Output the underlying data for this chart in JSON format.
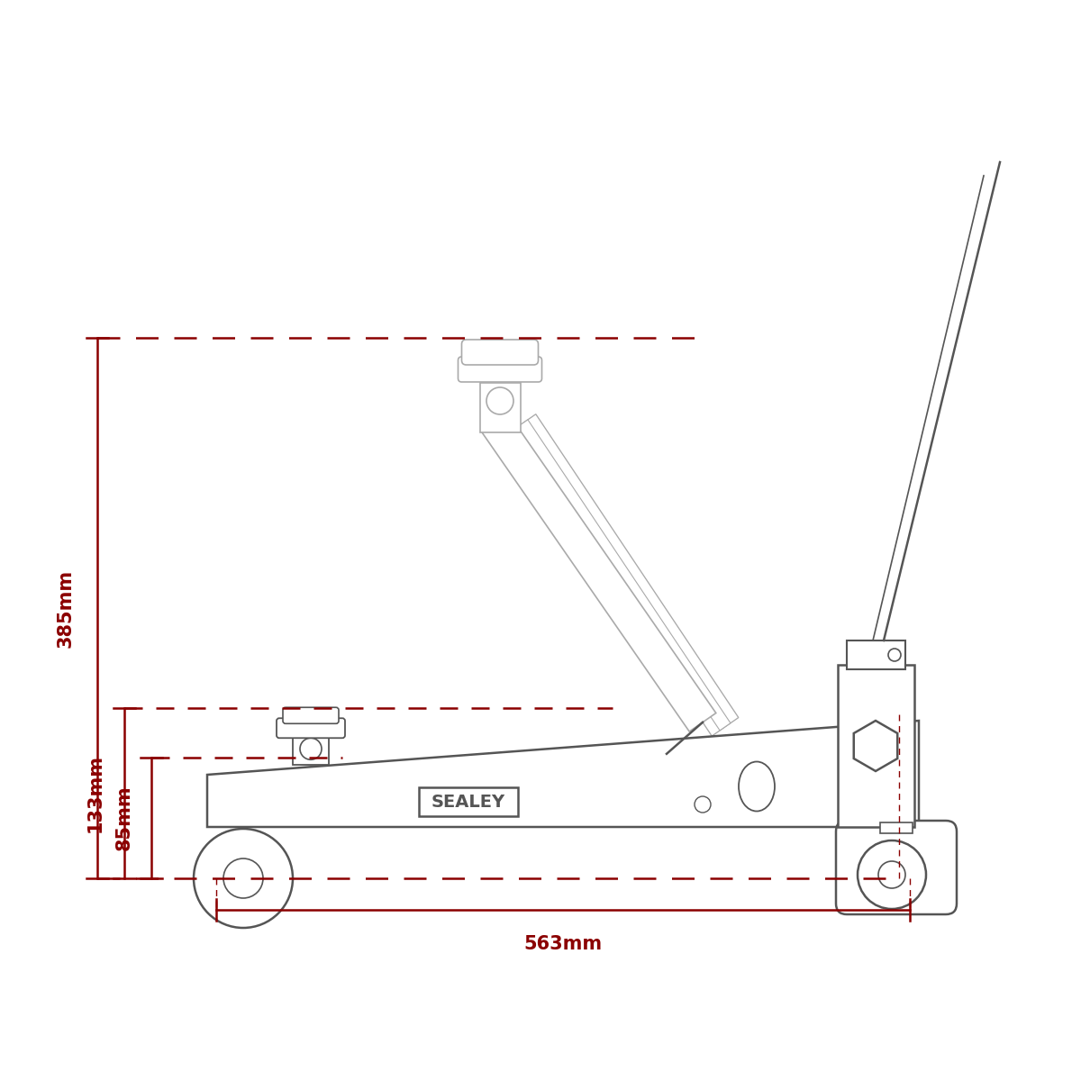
{
  "bg_color": "#ffffff",
  "outline_color": "#555555",
  "faint_color": "#aaaaaa",
  "dim_color": "#8B0000",
  "label_385": "385mm",
  "label_563": "563mm",
  "label_133": "133mm",
  "label_85": "85mm",
  "sealey_label": "SEALEY",
  "dim_fontsize": 15,
  "sealey_fontsize": 14,
  "lw_main": 1.8,
  "lw_faint": 1.2,
  "lw_dim": 1.8
}
